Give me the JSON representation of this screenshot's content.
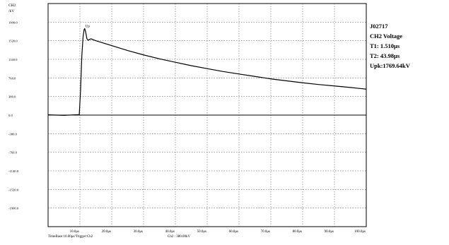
{
  "channel_label": "CH2",
  "unit_label": "/kV",
  "readout": {
    "id": "J02717",
    "channel": "CH2 Voltage",
    "t1": "T1:  1.510μs",
    "t2": "T2:  43.98μs",
    "upk": "Upk:1769.64kV"
  },
  "footer": {
    "timebase": "TimeBase:10.00μs/Trigger:Ch2",
    "scale": "Ch2 :  380.00kV"
  },
  "chart_data": {
    "type": "line",
    "title": "",
    "xlabel": "",
    "ylabel": "/kV",
    "xlim": [
      0,
      100
    ],
    "ylim": [
      -2280,
      2280
    ],
    "grid": true,
    "x_ticks": [
      "10.0μs",
      "20.0μs",
      "30.0μs",
      "40.0μs",
      "50.0μs",
      "60.0μs",
      "70.0μs",
      "80.0μs",
      "90.0μs",
      "100.0μs"
    ],
    "y_ticks": [
      "1900.0",
      "1520.0",
      "1140.0",
      "760.0",
      "380.0",
      "0.0",
      "-380.0",
      "-760.0",
      "-1140.0",
      "-1520.0",
      "-1900.0"
    ],
    "annotations": [
      {
        "text": "Up",
        "x": 11.5,
        "y": 1769.64
      }
    ],
    "series": [
      {
        "x": [
          0,
          5,
          9.8,
          10.2,
          10.6,
          11.0,
          11.3,
          11.5,
          11.8,
          12.2,
          12.6,
          13,
          13.5,
          15,
          20,
          25,
          30,
          35,
          40,
          45,
          50,
          55,
          60,
          65,
          70,
          75,
          80,
          85,
          90,
          95,
          100
        ],
        "y": [
          5,
          -5,
          10,
          500,
          1200,
          1600,
          1740,
          1769.64,
          1700,
          1560,
          1530,
          1545,
          1560,
          1520,
          1420,
          1320,
          1230,
          1150,
          1080,
          1010,
          950,
          890,
          840,
          790,
          740,
          700,
          660,
          625,
          595,
          565,
          530
        ],
        "color": "#000000"
      }
    ],
    "baseline": 0
  }
}
